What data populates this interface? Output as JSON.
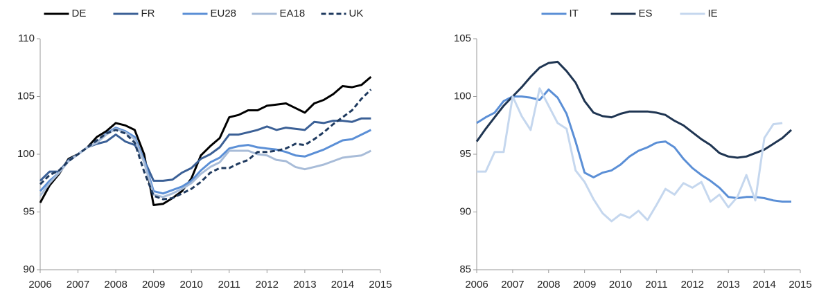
{
  "chart_data": [
    {
      "type": "line",
      "x": [
        2006,
        2006.25,
        2006.5,
        2006.75,
        2007,
        2007.25,
        2007.5,
        2007.75,
        2008,
        2008.25,
        2008.5,
        2008.75,
        2009,
        2009.25,
        2009.5,
        2009.75,
        2010,
        2010.25,
        2010.5,
        2010.75,
        2011,
        2011.25,
        2011.5,
        2011.75,
        2012,
        2012.25,
        2012.5,
        2012.75,
        2013,
        2013.25,
        2013.5,
        2013.75,
        2014,
        2014.25,
        2014.5,
        2014.75
      ],
      "xlim": [
        2006,
        2015
      ],
      "xticks": [
        2006,
        2007,
        2008,
        2009,
        2010,
        2011,
        2012,
        2013,
        2014,
        2015
      ],
      "ylim": [
        90,
        110
      ],
      "yticks": [
        90,
        95,
        100,
        105,
        110
      ],
      "series": [
        {
          "name": "DE",
          "color": "#000000",
          "values": [
            95.8,
            97.3,
            98.3,
            99.6,
            100.0,
            100.6,
            101.5,
            102.0,
            102.7,
            102.5,
            102.1,
            100.0,
            95.6,
            95.7,
            96.2,
            96.8,
            97.9,
            99.9,
            100.7,
            101.4,
            103.2,
            103.4,
            103.8,
            103.8,
            104.2,
            104.3,
            104.4,
            104.0,
            103.6,
            104.4,
            104.7,
            105.2,
            105.9,
            105.8,
            106.0,
            106.7
          ]
        },
        {
          "name": "FR",
          "color": "#3b6096",
          "values": [
            97.7,
            98.5,
            98.5,
            99.5,
            100.0,
            100.6,
            100.9,
            101.1,
            101.7,
            101.1,
            100.8,
            99.5,
            97.7,
            97.7,
            97.8,
            98.4,
            98.8,
            99.6,
            100.0,
            100.6,
            101.7,
            101.7,
            101.9,
            102.1,
            102.4,
            102.1,
            102.3,
            102.2,
            102.1,
            102.8,
            102.7,
            102.9,
            102.9,
            102.8,
            103.1,
            103.1
          ]
        },
        {
          "name": "EU28",
          "color": "#5b8fd6",
          "values": [
            96.8,
            97.7,
            98.4,
            99.4,
            100.0,
            100.6,
            101.0,
            101.8,
            102.3,
            102.0,
            101.5,
            99.5,
            96.8,
            96.6,
            96.9,
            97.2,
            97.7,
            98.6,
            99.3,
            99.7,
            100.5,
            100.7,
            100.8,
            100.6,
            100.5,
            100.4,
            100.2,
            99.9,
            99.8,
            100.1,
            100.4,
            100.8,
            101.2,
            101.3,
            101.7,
            102.1
          ]
        },
        {
          "name": "EA18",
          "color": "#a8bcd8",
          "values": [
            96.4,
            97.5,
            98.4,
            99.4,
            100.0,
            100.6,
            101.0,
            101.7,
            102.2,
            101.9,
            101.3,
            99.3,
            96.5,
            96.3,
            96.6,
            97.0,
            97.5,
            98.3,
            98.9,
            99.3,
            100.3,
            100.3,
            100.3,
            100.0,
            99.9,
            99.5,
            99.4,
            98.9,
            98.7,
            98.9,
            99.1,
            99.4,
            99.7,
            99.8,
            99.9,
            100.3
          ]
        },
        {
          "name": "UK",
          "color": "#1f3a5f",
          "dashed": true,
          "values": [
            97.4,
            98.2,
            98.6,
            99.4,
            100.0,
            100.6,
            101.2,
            101.8,
            102.1,
            101.8,
            101.0,
            98.5,
            96.4,
            96.1,
            96.2,
            96.6,
            97.0,
            97.6,
            98.4,
            98.8,
            98.8,
            99.2,
            99.5,
            100.2,
            100.2,
            100.3,
            100.5,
            100.9,
            100.8,
            101.3,
            101.9,
            102.6,
            103.2,
            103.8,
            104.8,
            105.6
          ]
        }
      ]
    },
    {
      "type": "line",
      "x": [
        2006,
        2006.25,
        2006.5,
        2006.75,
        2007,
        2007.25,
        2007.5,
        2007.75,
        2008,
        2008.25,
        2008.5,
        2008.75,
        2009,
        2009.25,
        2009.5,
        2009.75,
        2010,
        2010.25,
        2010.5,
        2010.75,
        2011,
        2011.25,
        2011.5,
        2011.75,
        2012,
        2012.25,
        2012.5,
        2012.75,
        2013,
        2013.25,
        2013.5,
        2013.75,
        2014,
        2014.25,
        2014.5,
        2014.75
      ],
      "xlim": [
        2006,
        2015
      ],
      "xticks": [
        2006,
        2007,
        2008,
        2009,
        2010,
        2011,
        2012,
        2013,
        2014,
        2015
      ],
      "ylim": [
        85,
        105
      ],
      "yticks": [
        85,
        90,
        95,
        100,
        105
      ],
      "series": [
        {
          "name": "IT",
          "color": "#5b8fd6",
          "values": [
            97.7,
            98.2,
            98.6,
            99.6,
            100.0,
            100.0,
            99.9,
            99.7,
            100.6,
            99.9,
            98.5,
            96.1,
            93.4,
            93.0,
            93.4,
            93.6,
            94.1,
            94.8,
            95.3,
            95.6,
            96.0,
            96.1,
            95.6,
            94.6,
            93.8,
            93.2,
            92.7,
            92.1,
            91.3,
            91.2,
            91.3,
            91.3,
            91.2,
            91.0,
            90.9,
            90.9
          ]
        },
        {
          "name": "ES",
          "color": "#1f3552",
          "values": [
            96.1,
            97.2,
            98.2,
            99.2,
            100.0,
            100.8,
            101.7,
            102.5,
            102.9,
            103.0,
            102.2,
            101.2,
            99.6,
            98.6,
            98.3,
            98.2,
            98.5,
            98.7,
            98.7,
            98.7,
            98.6,
            98.4,
            97.9,
            97.5,
            96.9,
            96.3,
            95.8,
            95.1,
            94.8,
            94.7,
            94.8,
            95.1,
            95.4,
            95.9,
            96.4,
            97.1
          ]
        },
        {
          "name": "IE",
          "color": "#c5d7ee",
          "values": [
            93.5,
            93.5,
            95.2,
            95.2,
            100.0,
            98.3,
            97.1,
            100.7,
            99.2,
            97.7,
            97.2,
            93.6,
            92.6,
            91.1,
            89.9,
            89.2,
            89.8,
            89.5,
            90.1,
            89.3,
            90.6,
            92.0,
            91.5,
            92.5,
            92.1,
            92.6,
            90.9,
            91.5,
            90.4,
            91.3,
            93.2,
            91.0,
            96.4,
            97.6,
            97.7,
            null
          ]
        }
      ]
    }
  ]
}
